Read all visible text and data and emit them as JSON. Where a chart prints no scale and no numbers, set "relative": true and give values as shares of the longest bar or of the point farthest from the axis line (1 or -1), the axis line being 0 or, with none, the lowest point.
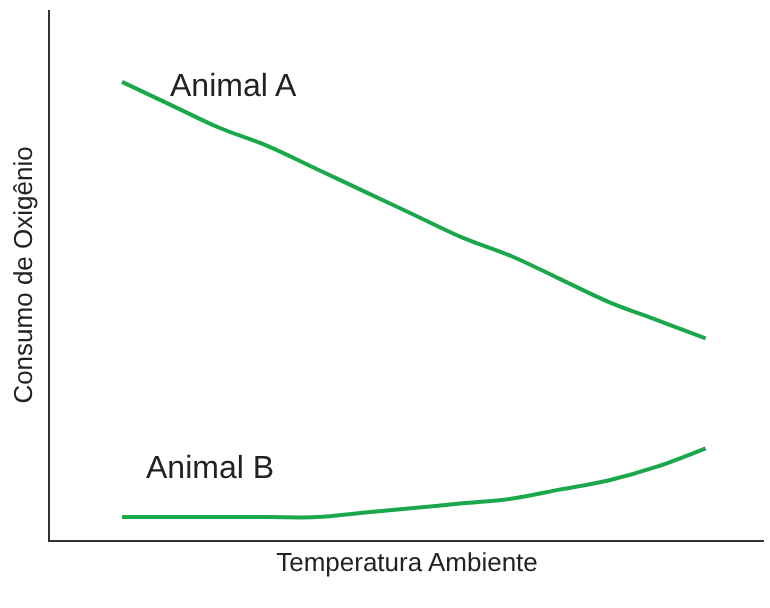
{
  "chart_data": {
    "type": "line",
    "relative": true,
    "xlabel": "Temperatura Ambiente",
    "ylabel": "Consumo de Oxigênio",
    "categories": [
      null,
      null,
      null,
      null,
      null,
      null,
      null,
      null,
      null,
      null,
      null,
      null,
      null
    ],
    "series": [
      {
        "name": "Animal A",
        "color": "#1aa84a",
        "values": [
          1,
          0.95,
          0.9,
          0.86,
          0.81,
          0.76,
          0.71,
          0.66,
          0.62,
          0.57,
          0.52,
          0.48,
          0.44
        ]
      },
      {
        "name": "Animal B",
        "color": "#1aa84a",
        "values": [
          0.05,
          0.05,
          0.05,
          0.05,
          0.05,
          0.06,
          0.07,
          0.08,
          0.09,
          0.11,
          0.13,
          0.16,
          0.2
        ]
      }
    ],
    "legend": false,
    "marker": "none",
    "line_style": "solid"
  }
}
